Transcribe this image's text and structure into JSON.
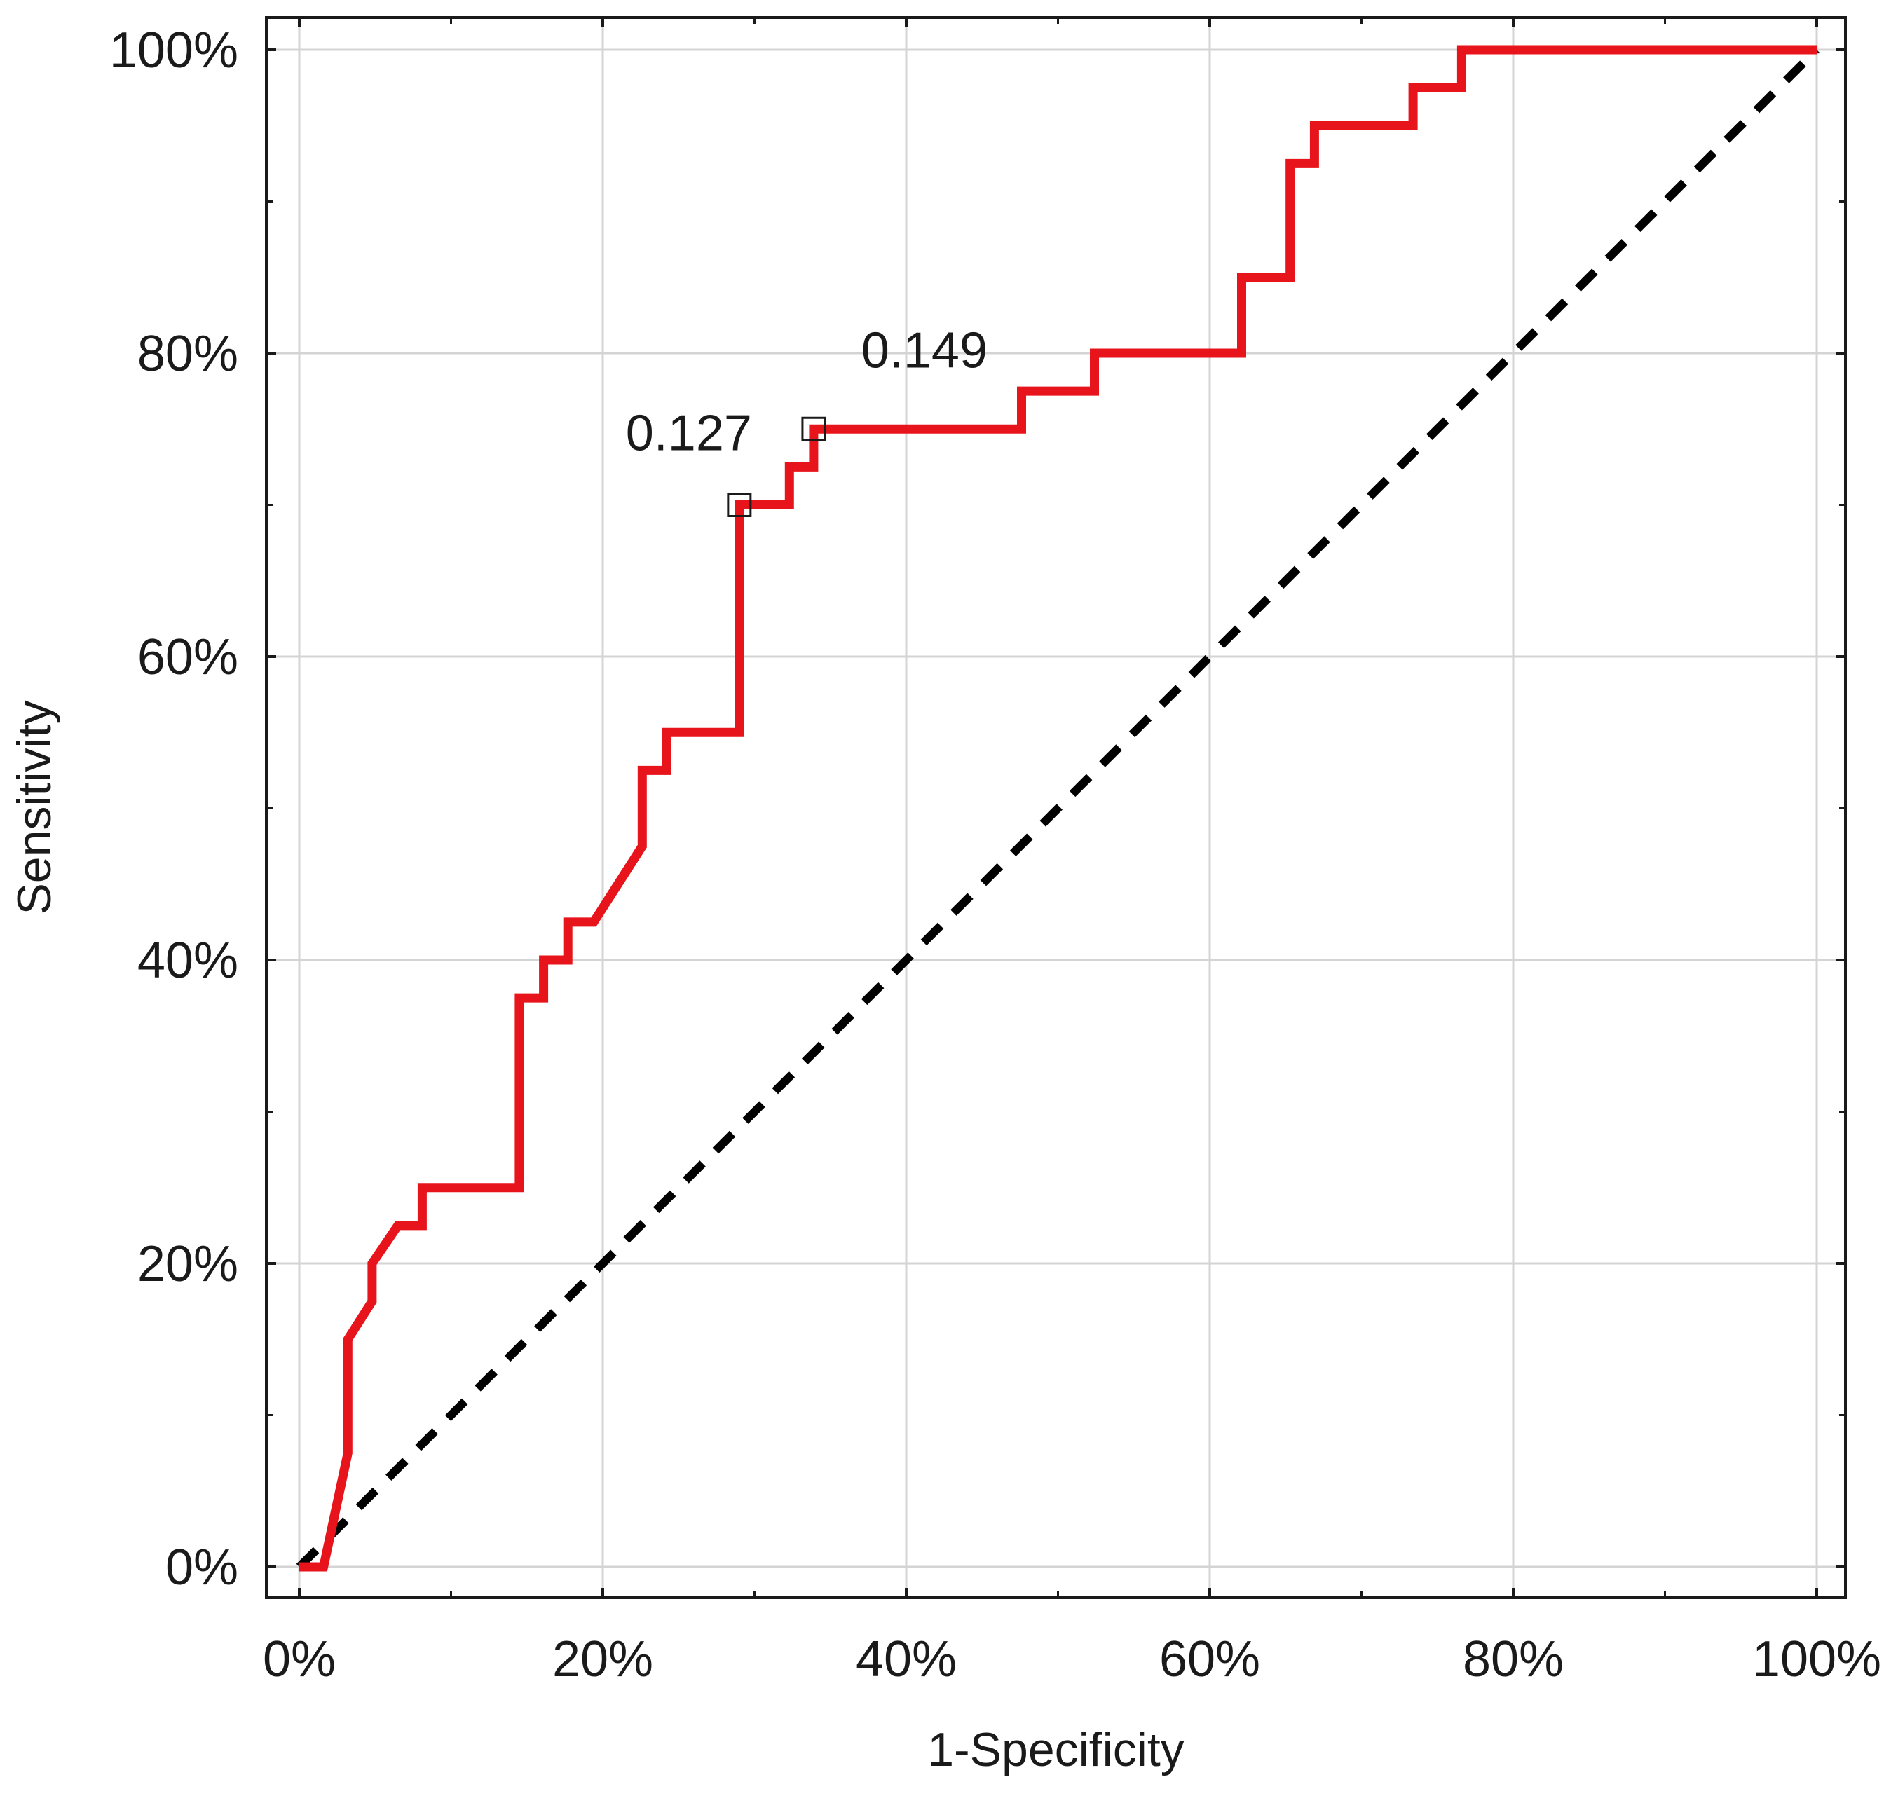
{
  "chart_data": {
    "type": "line",
    "title": "",
    "xlabel": "1-Specificity",
    "ylabel": "Sensitivity",
    "xlim": [
      0,
      1
    ],
    "ylim": [
      0,
      1
    ],
    "xticks": [
      0,
      0.2,
      0.4,
      0.6,
      0.8,
      1.0
    ],
    "yticks": [
      0,
      0.2,
      0.4,
      0.6,
      0.8,
      1.0
    ],
    "xtick_labels": [
      "0%",
      "20%",
      "40%",
      "60%",
      "80%",
      "100%"
    ],
    "ytick_labels": [
      "0%",
      "20%",
      "40%",
      "60%",
      "80%",
      "100%"
    ],
    "minor_ticks": [
      0.1,
      0.3,
      0.5,
      0.7,
      0.9
    ],
    "grid": true,
    "legend": "none",
    "series": [
      {
        "color": "#e8141b",
        "style": "solid",
        "x": [
          0,
          0.016,
          0.032,
          0.032,
          0.032,
          0.048,
          0.048,
          0.065,
          0.081,
          0.081,
          0.145,
          0.145,
          0.161,
          0.161,
          0.177,
          0.177,
          0.194,
          0.226,
          0.226,
          0.242,
          0.242,
          0.29,
          0.29,
          0.323,
          0.323,
          0.339,
          0.339,
          0.339,
          0.476,
          0.476,
          0.524,
          0.524,
          0.621,
          0.621,
          0.653,
          0.653,
          0.669,
          0.669,
          0.734,
          0.734,
          0.766,
          0.766,
          1.0
        ],
        "y": [
          0,
          0,
          0.075,
          0.125,
          0.15,
          0.175,
          0.2,
          0.225,
          0.225,
          0.25,
          0.25,
          0.375,
          0.375,
          0.4,
          0.4,
          0.425,
          0.425,
          0.475,
          0.525,
          0.525,
          0.55,
          0.55,
          0.7,
          0.7,
          0.725,
          0.725,
          0.75,
          0.75,
          0.75,
          0.775,
          0.775,
          0.8,
          0.8,
          0.85,
          0.85,
          0.925,
          0.925,
          0.95,
          0.95,
          0.975,
          0.975,
          1.0,
          1.0
        ]
      },
      {
        "color": "#000000",
        "style": "dashed",
        "x": [
          0,
          1
        ],
        "y": [
          0,
          1
        ]
      }
    ],
    "annotations": [
      {
        "text": "0.127",
        "x": 0.29,
        "y": 0.7,
        "marker": "square"
      },
      {
        "text": "0.149",
        "x": 0.339,
        "y": 0.75,
        "marker": "square"
      }
    ]
  }
}
